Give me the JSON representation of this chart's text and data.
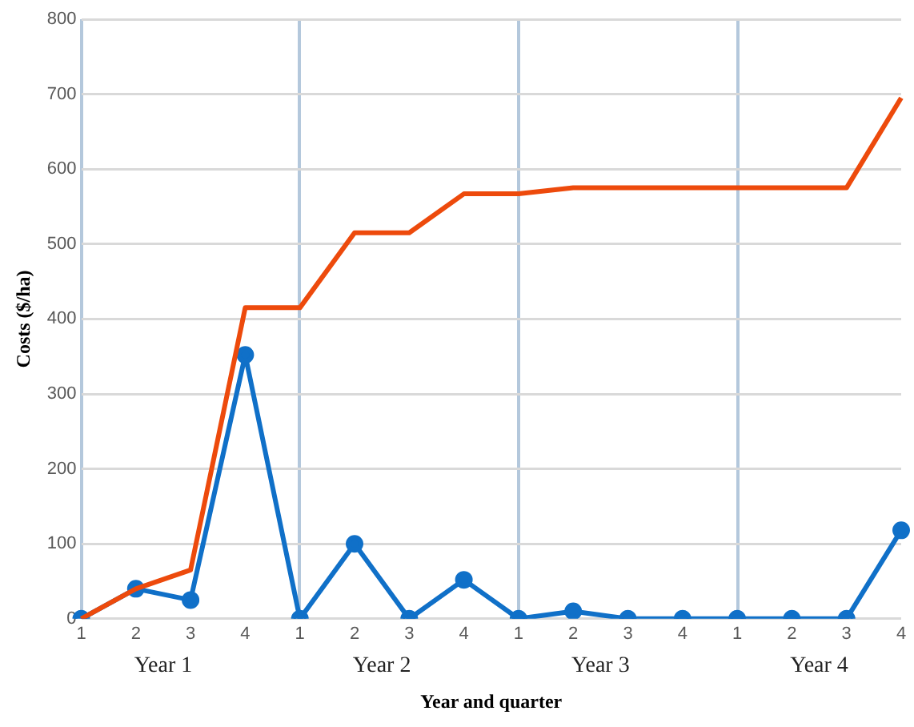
{
  "chart_data": {
    "type": "line",
    "xlabel": "Year and quarter",
    "ylabel": "Costs ($/ha)",
    "categories": [
      "1",
      "2",
      "3",
      "4",
      "1",
      "2",
      "3",
      "4",
      "1",
      "2",
      "3",
      "4",
      "1",
      "2",
      "3",
      "4"
    ],
    "ylim": [
      0,
      800
    ],
    "yticks": [
      0,
      100,
      200,
      300,
      400,
      500,
      600,
      700,
      800
    ],
    "series": [
      {
        "color": "#ed4a0c",
        "marker": "none",
        "values": [
          0,
          40,
          65,
          415,
          415,
          515,
          515,
          567,
          567,
          575,
          575,
          575,
          575,
          575,
          575,
          695
        ]
      },
      {
        "color": "#1070c8",
        "marker": "circle",
        "values": [
          0,
          40,
          25,
          352,
          0,
          100,
          0,
          52,
          0,
          10,
          0,
          0,
          0,
          0,
          0,
          118
        ]
      }
    ],
    "annotations": [
      "Year 1",
      "Year 2",
      "Year 3",
      "Year 4"
    ],
    "grid": "y",
    "legend": false
  }
}
